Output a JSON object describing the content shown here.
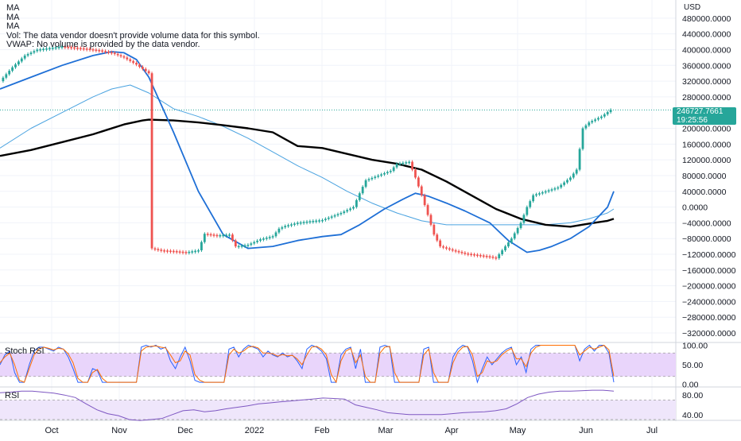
{
  "legend": {
    "lines": [
      "MA",
      "MA",
      "MA",
      "Vol: The data vendor doesn't provide volume data for this symbol.",
      "VWAP: No volume is provided by the data vendor."
    ]
  },
  "price_axis": {
    "currency": "USD",
    "last_price": "246727.7661",
    "countdown": "19:25:56"
  },
  "panels": {
    "stoch_label": "Stoch RSI",
    "rsi_label": "RSI"
  },
  "colors": {
    "up": "#26a69a",
    "down": "#ef5350",
    "ma_fast": "#1e6fd6",
    "ma_mid": "#4aa3e0",
    "ma_slow": "#000000",
    "stoch_k": "#2962ff",
    "stoch_d": "#ff6d00",
    "rsi_line": "#7e57c2",
    "band_fill": "#e9d5fb",
    "price_tag": "#26a69a"
  },
  "chart_data": [
    {
      "type": "candlestick",
      "name": "price",
      "x_tick_labels": [
        "Oct",
        "Nov",
        "Dec",
        "2022",
        "Feb",
        "Mar",
        "Apr",
        "May",
        "Jun",
        "Jul"
      ],
      "y_tick_labels": [
        "480000.0000",
        "440000.0000",
        "400000.0000",
        "360000.0000",
        "320000.0000",
        "280000.0000",
        "200000.0000",
        "160000.0000",
        "120000.0000",
        "80000.0000",
        "40000.0000",
        "0.0000",
        "−40000.0000",
        "−80000.0000",
        "−120000.0000",
        "−160000.0000",
        "−200000.0000",
        "−240000.0000",
        "−280000.0000",
        "−320000.0000"
      ],
      "ylim": [
        -330000,
        510000
      ],
      "close_path": [
        [
          0,
          320000
        ],
        [
          4,
          355000
        ],
        [
          8,
          385000
        ],
        [
          12,
          400000
        ],
        [
          16,
          404000
        ],
        [
          20,
          408000
        ],
        [
          24,
          405000
        ],
        [
          28,
          402000
        ],
        [
          32,
          398000
        ],
        [
          36,
          392000
        ],
        [
          40,
          380000
        ],
        [
          44,
          362000
        ],
        [
          48,
          340000
        ],
        [
          49,
          -105000
        ],
        [
          52,
          -110000
        ],
        [
          56,
          -112000
        ],
        [
          60,
          -115000
        ],
        [
          64,
          -110000
        ],
        [
          66,
          -68000
        ],
        [
          70,
          -72000
        ],
        [
          74,
          -70000
        ],
        [
          76,
          -100000
        ],
        [
          80,
          -96000
        ],
        [
          84,
          -82000
        ],
        [
          88,
          -74000
        ],
        [
          90,
          -55000
        ],
        [
          92,
          -48000
        ],
        [
          96,
          -40000
        ],
        [
          100,
          -36000
        ],
        [
          104,
          -33000
        ],
        [
          110,
          -15000
        ],
        [
          114,
          0
        ],
        [
          116,
          35000
        ],
        [
          118,
          68000
        ],
        [
          122,
          80000
        ],
        [
          126,
          92000
        ],
        [
          128,
          110000
        ],
        [
          132,
          115000
        ],
        [
          134,
          75000
        ],
        [
          136,
          30000
        ],
        [
          138,
          -20000
        ],
        [
          140,
          -70000
        ],
        [
          142,
          -100000
        ],
        [
          146,
          -110000
        ],
        [
          150,
          -118000
        ],
        [
          154,
          -122000
        ],
        [
          158,
          -126000
        ],
        [
          160,
          -130000
        ],
        [
          162,
          -110000
        ],
        [
          165,
          -80000
        ],
        [
          168,
          -40000
        ],
        [
          170,
          0
        ],
        [
          172,
          30000
        ],
        [
          176,
          40000
        ],
        [
          180,
          50000
        ],
        [
          184,
          75000
        ],
        [
          186,
          95000
        ],
        [
          188,
          200000
        ],
        [
          190,
          215000
        ],
        [
          194,
          230000
        ],
        [
          197,
          247000
        ]
      ],
      "ma_fast_path": [
        [
          0,
          300000
        ],
        [
          10,
          330000
        ],
        [
          20,
          360000
        ],
        [
          30,
          385000
        ],
        [
          36,
          395000
        ],
        [
          40,
          392000
        ],
        [
          44,
          375000
        ],
        [
          48,
          330000
        ],
        [
          56,
          190000
        ],
        [
          64,
          40000
        ],
        [
          72,
          -70000
        ],
        [
          80,
          -105000
        ],
        [
          88,
          -100000
        ],
        [
          96,
          -85000
        ],
        [
          104,
          -75000
        ],
        [
          110,
          -70000
        ],
        [
          116,
          -45000
        ],
        [
          124,
          -5000
        ],
        [
          130,
          20000
        ],
        [
          134,
          35000
        ],
        [
          138,
          28000
        ],
        [
          144,
          10000
        ],
        [
          150,
          -10000
        ],
        [
          158,
          -40000
        ],
        [
          164,
          -85000
        ],
        [
          170,
          -115000
        ],
        [
          174,
          -110000
        ],
        [
          178,
          -100000
        ],
        [
          184,
          -80000
        ],
        [
          190,
          -50000
        ],
        [
          196,
          0
        ],
        [
          198,
          40000
        ]
      ],
      "ma_mid_path": [
        [
          0,
          150000
        ],
        [
          10,
          200000
        ],
        [
          20,
          240000
        ],
        [
          30,
          280000
        ],
        [
          36,
          300000
        ],
        [
          42,
          310000
        ],
        [
          48,
          290000
        ],
        [
          56,
          250000
        ],
        [
          64,
          230000
        ],
        [
          72,
          205000
        ],
        [
          80,
          175000
        ],
        [
          88,
          140000
        ],
        [
          96,
          105000
        ],
        [
          104,
          75000
        ],
        [
          112,
          40000
        ],
        [
          120,
          10000
        ],
        [
          128,
          -15000
        ],
        [
          136,
          -35000
        ],
        [
          144,
          -45000
        ],
        [
          152,
          -45000
        ],
        [
          160,
          -45000
        ],
        [
          168,
          -45000
        ],
        [
          176,
          -45000
        ],
        [
          184,
          -40000
        ],
        [
          190,
          -30000
        ],
        [
          196,
          -15000
        ],
        [
          198,
          -5000
        ]
      ],
      "ma_slow_path": [
        [
          0,
          130000
        ],
        [
          10,
          145000
        ],
        [
          20,
          165000
        ],
        [
          30,
          185000
        ],
        [
          40,
          210000
        ],
        [
          46,
          220000
        ],
        [
          48,
          222000
        ],
        [
          56,
          220000
        ],
        [
          64,
          215000
        ],
        [
          72,
          208000
        ],
        [
          80,
          200000
        ],
        [
          88,
          190000
        ],
        [
          96,
          155000
        ],
        [
          104,
          150000
        ],
        [
          112,
          135000
        ],
        [
          120,
          120000
        ],
        [
          128,
          110000
        ],
        [
          136,
          95000
        ],
        [
          144,
          65000
        ],
        [
          152,
          30000
        ],
        [
          160,
          -5000
        ],
        [
          168,
          -30000
        ],
        [
          176,
          -45000
        ],
        [
          184,
          -50000
        ],
        [
          190,
          -42000
        ],
        [
          196,
          -35000
        ],
        [
          198,
          -30000
        ]
      ],
      "last_price": 246727.7661
    },
    {
      "type": "line",
      "name": "Stoch RSI",
      "y_tick_labels": [
        "100.00",
        "50.00",
        "0.00"
      ],
      "ylim": [
        -5,
        105
      ],
      "band": [
        20,
        80
      ],
      "series": [
        {
          "values": [
            50,
            75,
            85,
            30,
            5,
            5,
            50,
            85,
            95,
            95,
            90,
            85,
            95,
            90,
            70,
            40,
            5,
            5,
            5,
            40,
            35,
            5,
            5,
            5,
            5,
            5,
            5,
            5,
            5,
            95,
            100,
            95,
            100,
            90,
            95,
            60,
            40,
            70,
            95,
            60,
            10,
            5,
            5,
            5,
            5,
            5,
            5,
            90,
            95,
            70,
            90,
            100,
            95,
            90,
            70,
            85,
            75,
            70,
            80,
            70,
            75,
            60,
            40,
            90,
            100,
            95,
            85,
            65,
            5,
            5,
            75,
            90,
            95,
            40,
            90,
            5,
            5,
            5,
            95,
            100,
            95,
            5,
            5,
            5,
            5,
            5,
            5,
            90,
            95,
            5,
            5,
            5,
            5,
            70,
            90,
            100,
            95,
            60,
            5,
            40,
            70,
            50,
            65,
            80,
            90,
            95,
            50,
            70,
            30,
            90,
            100,
            100,
            100,
            100,
            100,
            100,
            100,
            100,
            100,
            60,
            90,
            100,
            85,
            100,
            100,
            80,
            5
          ]
        },
        {
          "values": [
            55,
            70,
            80,
            50,
            10,
            5,
            40,
            75,
            90,
            95,
            92,
            88,
            92,
            90,
            78,
            55,
            15,
            5,
            5,
            30,
            38,
            15,
            5,
            5,
            5,
            5,
            5,
            5,
            5,
            85,
            95,
            97,
            98,
            95,
            93,
            75,
            55,
            60,
            85,
            75,
            25,
            10,
            5,
            5,
            5,
            5,
            5,
            75,
            90,
            80,
            85,
            95,
            97,
            93,
            80,
            80,
            78,
            72,
            76,
            73,
            74,
            65,
            50,
            75,
            95,
            97,
            90,
            75,
            25,
            5,
            60,
            85,
            92,
            55,
            75,
            20,
            5,
            5,
            80,
            95,
            97,
            30,
            5,
            5,
            5,
            5,
            5,
            75,
            90,
            30,
            5,
            5,
            5,
            55,
            82,
            95,
            97,
            75,
            20,
            30,
            60,
            55,
            60,
            75,
            85,
            92,
            65,
            65,
            45,
            80,
            95,
            100,
            100,
            100,
            100,
            100,
            100,
            100,
            100,
            75,
            85,
            95,
            90,
            95,
            100,
            88,
            20
          ]
        }
      ]
    },
    {
      "type": "line",
      "name": "RSI",
      "y_tick_labels": [
        "80.00",
        "40.00"
      ],
      "ylim": [
        30,
        95
      ],
      "band": [
        30,
        70
      ],
      "values": [
        85,
        86,
        88,
        88,
        86,
        84,
        80,
        75,
        62,
        50,
        42,
        38,
        30,
        28,
        30,
        32,
        40,
        48,
        50,
        46,
        48,
        52,
        55,
        58,
        62,
        64,
        66,
        68,
        70,
        72,
        74,
        73,
        72,
        60,
        55,
        50,
        44,
        42,
        40,
        40,
        40,
        40,
        42,
        44,
        45,
        46,
        48,
        52,
        62,
        75,
        82,
        86,
        88,
        88,
        89,
        90,
        90,
        88
      ]
    }
  ]
}
